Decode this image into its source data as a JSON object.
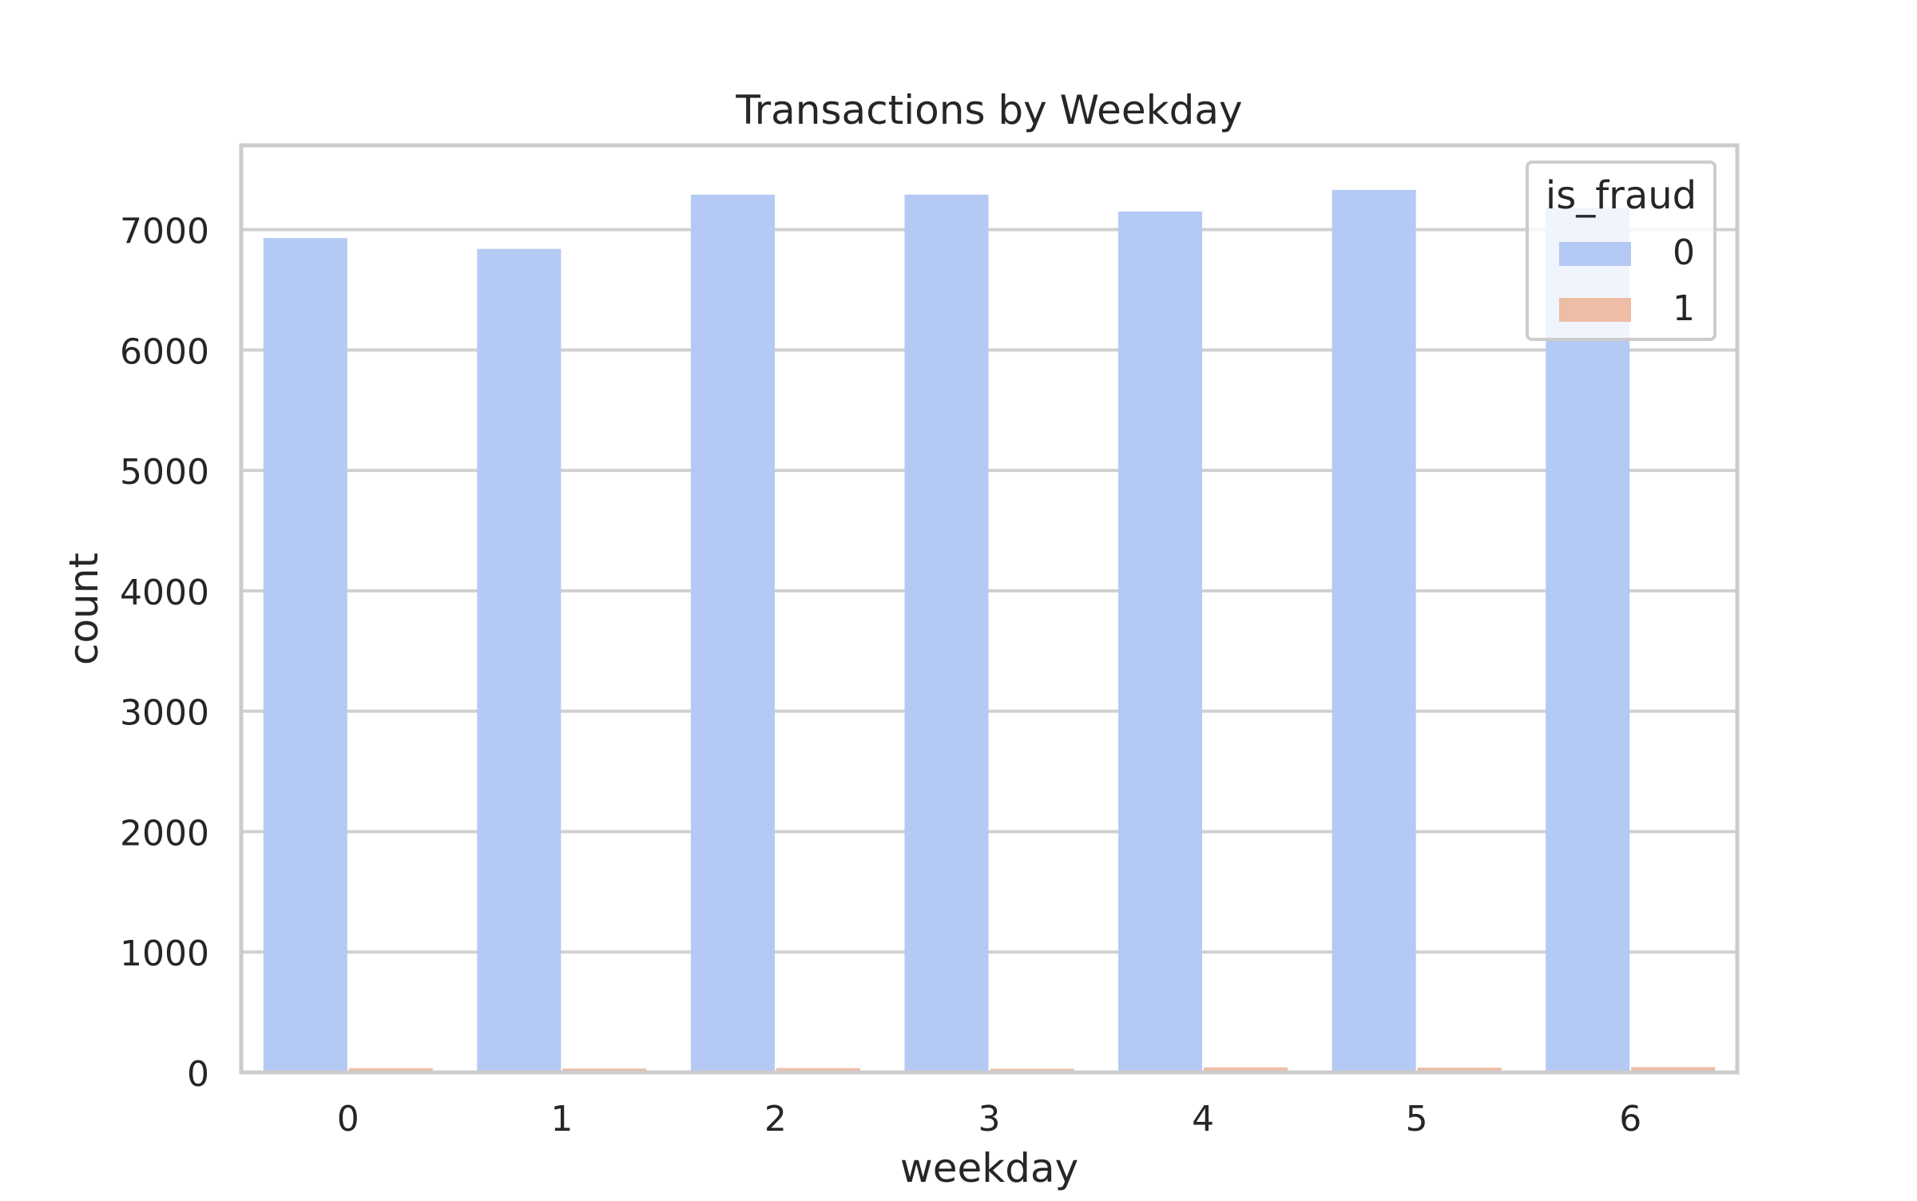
{
  "chart_data": {
    "type": "bar",
    "title": "Transactions by Weekday",
    "xlabel": "weekday",
    "ylabel": "count",
    "categories": [
      "0",
      "1",
      "2",
      "3",
      "4",
      "5",
      "6"
    ],
    "series": [
      {
        "name": "0",
        "values": [
          6930,
          6840,
          7290,
          7290,
          7150,
          7330,
          7180
        ],
        "color": "#b4c9f3"
      },
      {
        "name": "1",
        "values": [
          35,
          32,
          36,
          30,
          42,
          40,
          44
        ],
        "color": "#eebda6"
      }
    ],
    "ylim": [
      0,
      7700
    ],
    "yticks": [
      0,
      1000,
      2000,
      3000,
      4000,
      5000,
      6000,
      7000
    ],
    "grid": true,
    "legend": {
      "title": "is_fraud",
      "placement": "top-right"
    },
    "colors": {
      "grid": "#d0d0d0",
      "frame": "#cccccc",
      "text": "#262626",
      "background": "#ffffff"
    }
  }
}
